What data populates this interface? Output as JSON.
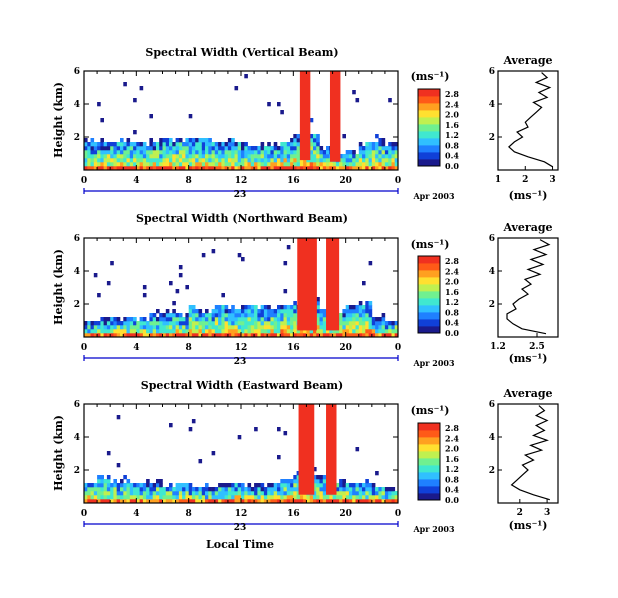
{
  "figure": {
    "xlabel": "Local Time",
    "colors": {
      "cmap": [
        "#1a1a8c",
        "#1040d8",
        "#1f80ff",
        "#30c0ff",
        "#40e8d0",
        "#70f090",
        "#c0f050",
        "#ffe030",
        "#ffa020",
        "#ff5a18",
        "#f03020"
      ],
      "axis": "#000000",
      "date_axis": "#0000cc",
      "avg_line": "#000000"
    }
  },
  "chart_data": [
    {
      "type": "heatmap",
      "title": "Spectral Width (Vertical Beam)",
      "ylabel": "Height (km)",
      "xlim": [
        0,
        24
      ],
      "ylim": [
        0,
        6
      ],
      "x_ticks": [
        "0",
        "4",
        "8",
        "12",
        "16",
        "20",
        "0"
      ],
      "y_ticks": [
        "2",
        "4",
        "6"
      ],
      "date_label": "23",
      "month_label": "Apr 2003",
      "unit_label": "(ms⁻¹)",
      "colorbar": {
        "ticks": [
          "0.0",
          "0.4",
          "0.8",
          "1.2",
          "1.6",
          "2.0",
          "2.4",
          "2.8"
        ],
        "max": 3.0
      },
      "cloud_top_km": [
        1.7,
        1.7,
        1.8,
        1.7,
        1.6,
        1.7,
        1.8,
        1.9,
        1.9,
        1.8,
        1.7,
        1.8,
        1.6,
        1.5,
        1.5,
        1.8,
        2.0,
        2.2,
        1.3,
        1.0,
        1.2,
        1.6,
        1.8,
        1.6
      ],
      "spikes": [
        [
          16.5,
          17.3,
          0.6,
          6.0
        ],
        [
          18.8,
          19.6,
          0.5,
          6.0
        ]
      ],
      "average": {
        "title": "Average",
        "xlabel": "(ms⁻¹)",
        "x_ticks": [
          "1",
          "2",
          "3"
        ],
        "y_ticks": [
          "2",
          "4",
          "6"
        ],
        "xlim": [
          1,
          3.2
        ],
        "ylim": [
          0,
          6
        ],
        "profile": [
          [
            0.2,
            3.0
          ],
          [
            0.5,
            2.7
          ],
          [
            0.8,
            2.1
          ],
          [
            1.1,
            1.6
          ],
          [
            1.4,
            1.4
          ],
          [
            1.7,
            1.6
          ],
          [
            2.0,
            1.9
          ],
          [
            2.3,
            1.7
          ],
          [
            2.6,
            2.1
          ],
          [
            2.9,
            2.0
          ],
          [
            3.2,
            2.2
          ],
          [
            3.5,
            2.4
          ],
          [
            3.8,
            2.6
          ],
          [
            4.1,
            2.3
          ],
          [
            4.4,
            2.8
          ],
          [
            4.7,
            2.5
          ],
          [
            5.0,
            2.9
          ],
          [
            5.3,
            2.4
          ],
          [
            5.6,
            2.8
          ],
          [
            5.9,
            2.6
          ]
        ]
      }
    },
    {
      "type": "heatmap",
      "title": "Spectral Width (Northward Beam)",
      "ylabel": "Height (km)",
      "xlim": [
        0,
        24
      ],
      "ylim": [
        0,
        6
      ],
      "x_ticks": [
        "0",
        "4",
        "8",
        "12",
        "16",
        "20",
        "0"
      ],
      "y_ticks": [
        "2",
        "4",
        "6"
      ],
      "date_label": "23",
      "month_label": "Apr 2003",
      "unit_label": "(ms⁻¹)",
      "colorbar": {
        "ticks": [
          "0.0",
          "0.4",
          "0.8",
          "1.2",
          "1.6",
          "2.0",
          "2.4",
          "2.8"
        ],
        "max": 3.0
      },
      "cloud_top_km": [
        0.9,
        1.0,
        1.1,
        1.2,
        1.1,
        1.3,
        1.6,
        1.4,
        1.8,
        1.6,
        1.9,
        1.7,
        1.9,
        1.8,
        1.7,
        1.9,
        2.1,
        2.4,
        1.8,
        1.6,
        2.0,
        2.1,
        1.2,
        1.0
      ],
      "spikes": [
        [
          16.3,
          17.8,
          0.4,
          6.0
        ],
        [
          18.5,
          19.5,
          0.4,
          6.0
        ]
      ],
      "average": {
        "title": "Average",
        "xlabel": "(ms⁻¹)",
        "x_ticks": [
          "1.2",
          "2.5"
        ],
        "y_ticks": [
          "2",
          "4",
          "6"
        ],
        "xlim": [
          1.2,
          3.2
        ],
        "ylim": [
          0,
          6
        ],
        "profile": [
          [
            0.2,
            2.8
          ],
          [
            0.5,
            2.0
          ],
          [
            0.8,
            1.7
          ],
          [
            1.1,
            1.5
          ],
          [
            1.4,
            1.5
          ],
          [
            1.7,
            1.8
          ],
          [
            2.0,
            1.7
          ],
          [
            2.3,
            1.9
          ],
          [
            2.6,
            2.2
          ],
          [
            2.9,
            2.0
          ],
          [
            3.2,
            2.3
          ],
          [
            3.5,
            2.1
          ],
          [
            3.8,
            2.6
          ],
          [
            4.1,
            2.2
          ],
          [
            4.4,
            2.7
          ],
          [
            4.7,
            2.3
          ],
          [
            5.0,
            2.8
          ],
          [
            5.3,
            2.4
          ],
          [
            5.6,
            2.9
          ],
          [
            5.9,
            2.6
          ]
        ]
      }
    },
    {
      "type": "heatmap",
      "title": "Spectral Width (Eastward Beam)",
      "ylabel": "Height (km)",
      "xlim": [
        0,
        24
      ],
      "ylim": [
        0,
        6
      ],
      "x_ticks": [
        "0",
        "4",
        "8",
        "12",
        "16",
        "20",
        "0"
      ],
      "y_ticks": [
        "2",
        "4",
        "6"
      ],
      "date_label": "23",
      "month_label": "Apr 2003",
      "unit_label": "(ms⁻¹)",
      "colorbar": {
        "ticks": [
          "0.0",
          "0.4",
          "0.8",
          "1.2",
          "1.6",
          "2.0",
          "2.4",
          "2.8"
        ],
        "max": 3.0
      },
      "cloud_top_km": [
        1.2,
        1.6,
        1.4,
        1.3,
        1.2,
        1.3,
        1.1,
        1.2,
        1.1,
        1.0,
        1.1,
        1.2,
        1.1,
        1.0,
        1.2,
        1.4,
        1.8,
        1.6,
        1.6,
        1.4,
        1.3,
        1.2,
        1.0,
        0.8
      ],
      "spikes": [
        [
          16.4,
          17.6,
          0.5,
          6.0
        ],
        [
          18.5,
          19.3,
          0.5,
          6.0
        ]
      ],
      "average": {
        "title": "Average",
        "xlabel": "(ms⁻¹)",
        "x_ticks": [
          "2",
          "3"
        ],
        "y_ticks": [
          "2",
          "4",
          "6"
        ],
        "xlim": [
          1.2,
          3.4
        ],
        "ylim": [
          0,
          6
        ],
        "profile": [
          [
            0.2,
            3.1
          ],
          [
            0.5,
            2.5
          ],
          [
            0.8,
            2.0
          ],
          [
            1.1,
            1.7
          ],
          [
            1.4,
            1.9
          ],
          [
            1.7,
            2.1
          ],
          [
            2.0,
            2.3
          ],
          [
            2.3,
            2.1
          ],
          [
            2.6,
            2.5
          ],
          [
            2.9,
            2.2
          ],
          [
            3.2,
            2.8
          ],
          [
            3.5,
            2.4
          ],
          [
            3.8,
            3.0
          ],
          [
            4.1,
            2.5
          ],
          [
            4.4,
            2.9
          ],
          [
            4.7,
            2.6
          ],
          [
            5.0,
            3.0
          ],
          [
            5.3,
            2.6
          ],
          [
            5.6,
            2.9
          ],
          [
            5.9,
            2.7
          ]
        ]
      }
    }
  ]
}
